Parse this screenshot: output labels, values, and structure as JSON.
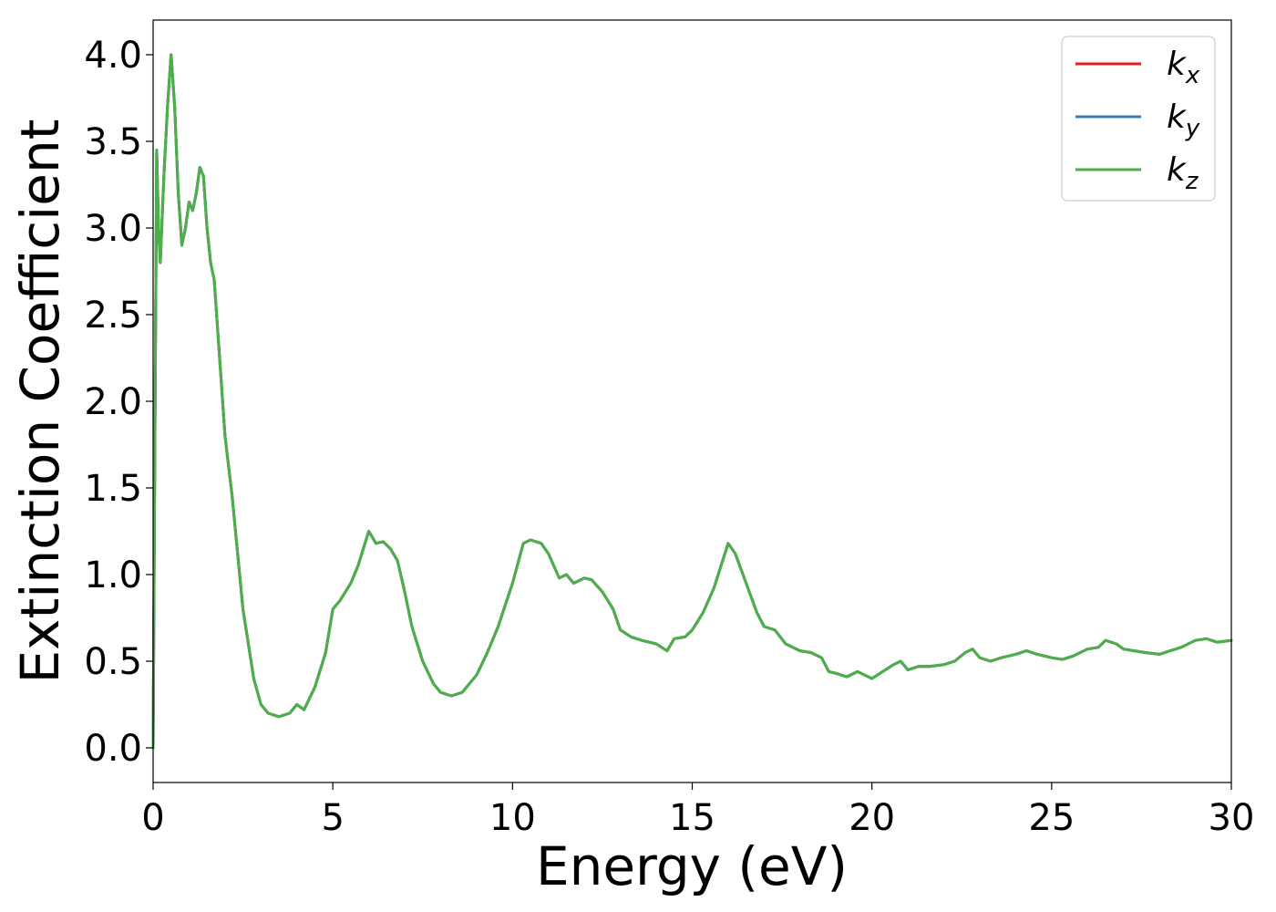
{
  "chart_data": {
    "type": "line",
    "title": "",
    "xlabel": "Energy (eV)",
    "ylabel": "Extinction Coefficient",
    "xlim": [
      0,
      30
    ],
    "ylim": [
      -0.2,
      4.2
    ],
    "xticks": [
      0,
      5,
      10,
      15,
      20,
      25,
      30
    ],
    "xtick_labels": [
      "0",
      "5",
      "10",
      "15",
      "20",
      "25",
      "30"
    ],
    "yticks": [
      0.0,
      0.5,
      1.0,
      1.5,
      2.0,
      2.5,
      3.0,
      3.5,
      4.0
    ],
    "ytick_labels": [
      "0.0",
      "0.5",
      "1.0",
      "1.5",
      "2.0",
      "2.5",
      "3.0",
      "3.5",
      "4.0"
    ],
    "grid": false,
    "legend_position": "top-right",
    "x": [
      0.0,
      0.05,
      0.1,
      0.15,
      0.2,
      0.3,
      0.4,
      0.5,
      0.6,
      0.7,
      0.8,
      0.9,
      1.0,
      1.1,
      1.2,
      1.3,
      1.4,
      1.5,
      1.6,
      1.7,
      1.8,
      2.0,
      2.2,
      2.5,
      2.8,
      3.0,
      3.2,
      3.5,
      3.8,
      4.0,
      4.2,
      4.5,
      4.8,
      5.0,
      5.2,
      5.5,
      5.7,
      6.0,
      6.2,
      6.4,
      6.6,
      6.8,
      7.0,
      7.2,
      7.5,
      7.8,
      8.0,
      8.3,
      8.6,
      9.0,
      9.3,
      9.6,
      10.0,
      10.3,
      10.5,
      10.8,
      11.0,
      11.3,
      11.5,
      11.7,
      12.0,
      12.2,
      12.5,
      12.8,
      13.0,
      13.3,
      13.6,
      14.0,
      14.3,
      14.5,
      14.8,
      15.0,
      15.3,
      15.6,
      15.8,
      16.0,
      16.2,
      16.5,
      16.8,
      17.0,
      17.3,
      17.6,
      18.0,
      18.3,
      18.6,
      18.8,
      19.0,
      19.3,
      19.6,
      19.8,
      20.0,
      20.3,
      20.6,
      20.8,
      21.0,
      21.3,
      21.6,
      22.0,
      22.3,
      22.6,
      22.8,
      23.0,
      23.3,
      23.6,
      24.0,
      24.3,
      24.6,
      25.0,
      25.3,
      25.6,
      26.0,
      26.3,
      26.5,
      26.8,
      27.0,
      27.3,
      27.6,
      28.0,
      28.3,
      28.6,
      29.0,
      29.3,
      29.6,
      30.0
    ],
    "series": [
      {
        "name": "k_x",
        "label_main": "k",
        "label_sub": "x",
        "color": "#e41a1c",
        "values": [
          0.0,
          1.8,
          3.45,
          3.0,
          2.8,
          3.3,
          3.7,
          4.0,
          3.7,
          3.2,
          2.9,
          3.0,
          3.15,
          3.1,
          3.2,
          3.35,
          3.3,
          3.0,
          2.8,
          2.7,
          2.4,
          1.8,
          1.45,
          0.8,
          0.4,
          0.25,
          0.2,
          0.18,
          0.2,
          0.25,
          0.22,
          0.35,
          0.55,
          0.8,
          0.85,
          0.95,
          1.05,
          1.25,
          1.18,
          1.19,
          1.15,
          1.08,
          0.9,
          0.7,
          0.5,
          0.37,
          0.32,
          0.3,
          0.32,
          0.42,
          0.55,
          0.7,
          0.95,
          1.18,
          1.2,
          1.18,
          1.12,
          0.98,
          1.0,
          0.95,
          0.98,
          0.97,
          0.9,
          0.8,
          0.68,
          0.64,
          0.62,
          0.6,
          0.56,
          0.63,
          0.64,
          0.68,
          0.78,
          0.92,
          1.05,
          1.18,
          1.12,
          0.95,
          0.78,
          0.7,
          0.68,
          0.6,
          0.56,
          0.55,
          0.52,
          0.44,
          0.43,
          0.41,
          0.44,
          0.42,
          0.4,
          0.44,
          0.48,
          0.5,
          0.45,
          0.47,
          0.47,
          0.48,
          0.5,
          0.55,
          0.57,
          0.52,
          0.5,
          0.52,
          0.54,
          0.56,
          0.54,
          0.52,
          0.51,
          0.53,
          0.57,
          0.58,
          0.62,
          0.6,
          0.57,
          0.56,
          0.55,
          0.54,
          0.56,
          0.58,
          0.62,
          0.63,
          0.61,
          0.62
        ]
      },
      {
        "name": "k_y",
        "label_main": "k",
        "label_sub": "y",
        "color": "#377eb8",
        "values": [
          0.0,
          1.8,
          3.45,
          3.0,
          2.8,
          3.3,
          3.7,
          4.0,
          3.7,
          3.2,
          2.9,
          3.0,
          3.15,
          3.1,
          3.2,
          3.35,
          3.3,
          3.0,
          2.8,
          2.7,
          2.4,
          1.8,
          1.45,
          0.8,
          0.4,
          0.25,
          0.2,
          0.18,
          0.2,
          0.25,
          0.22,
          0.35,
          0.55,
          0.8,
          0.85,
          0.95,
          1.05,
          1.25,
          1.18,
          1.19,
          1.15,
          1.08,
          0.9,
          0.7,
          0.5,
          0.37,
          0.32,
          0.3,
          0.32,
          0.42,
          0.55,
          0.7,
          0.95,
          1.18,
          1.2,
          1.18,
          1.12,
          0.98,
          1.0,
          0.95,
          0.98,
          0.97,
          0.9,
          0.8,
          0.68,
          0.64,
          0.62,
          0.6,
          0.56,
          0.63,
          0.64,
          0.68,
          0.78,
          0.92,
          1.05,
          1.18,
          1.12,
          0.95,
          0.78,
          0.7,
          0.68,
          0.6,
          0.56,
          0.55,
          0.52,
          0.44,
          0.43,
          0.41,
          0.44,
          0.42,
          0.4,
          0.44,
          0.48,
          0.5,
          0.45,
          0.47,
          0.47,
          0.48,
          0.5,
          0.55,
          0.57,
          0.52,
          0.5,
          0.52,
          0.54,
          0.56,
          0.54,
          0.52,
          0.51,
          0.53,
          0.57,
          0.58,
          0.62,
          0.6,
          0.57,
          0.56,
          0.55,
          0.54,
          0.56,
          0.58,
          0.62,
          0.63,
          0.61,
          0.62
        ]
      },
      {
        "name": "k_z",
        "label_main": "k",
        "label_sub": "z",
        "color": "#4daf4a",
        "values": [
          0.0,
          1.8,
          3.45,
          3.0,
          2.8,
          3.3,
          3.7,
          4.0,
          3.7,
          3.2,
          2.9,
          3.0,
          3.15,
          3.1,
          3.2,
          3.35,
          3.3,
          3.0,
          2.8,
          2.7,
          2.4,
          1.8,
          1.45,
          0.8,
          0.4,
          0.25,
          0.2,
          0.18,
          0.2,
          0.25,
          0.22,
          0.35,
          0.55,
          0.8,
          0.85,
          0.95,
          1.05,
          1.25,
          1.18,
          1.19,
          1.15,
          1.08,
          0.9,
          0.7,
          0.5,
          0.37,
          0.32,
          0.3,
          0.32,
          0.42,
          0.55,
          0.7,
          0.95,
          1.18,
          1.2,
          1.18,
          1.12,
          0.98,
          1.0,
          0.95,
          0.98,
          0.97,
          0.9,
          0.8,
          0.68,
          0.64,
          0.62,
          0.6,
          0.56,
          0.63,
          0.64,
          0.68,
          0.78,
          0.92,
          1.05,
          1.18,
          1.12,
          0.95,
          0.78,
          0.7,
          0.68,
          0.6,
          0.56,
          0.55,
          0.52,
          0.44,
          0.43,
          0.41,
          0.44,
          0.42,
          0.4,
          0.44,
          0.48,
          0.5,
          0.45,
          0.47,
          0.47,
          0.48,
          0.5,
          0.55,
          0.57,
          0.52,
          0.5,
          0.52,
          0.54,
          0.56,
          0.54,
          0.52,
          0.51,
          0.53,
          0.57,
          0.58,
          0.62,
          0.6,
          0.57,
          0.56,
          0.55,
          0.54,
          0.56,
          0.58,
          0.62,
          0.63,
          0.61,
          0.62
        ]
      }
    ]
  }
}
